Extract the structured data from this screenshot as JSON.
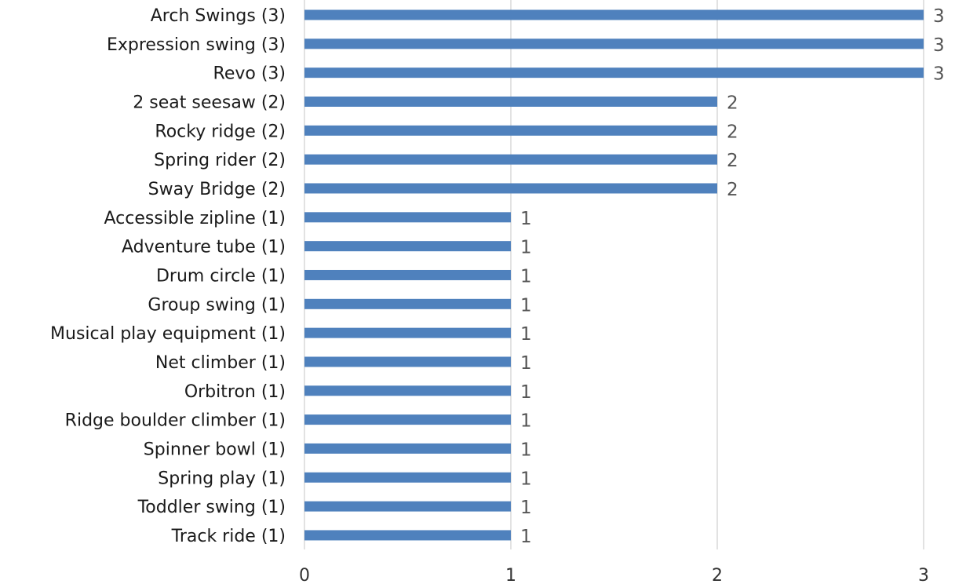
{
  "chart_data": {
    "type": "bar",
    "orientation": "horizontal",
    "categories": [
      "Arch Swings (3)",
      "Expression swing (3)",
      "Revo (3)",
      "2 seat seesaw (2)",
      "Rocky ridge (2)",
      "Spring rider (2)",
      "Sway Bridge (2)",
      "Accessible zipline (1)",
      "Adventure tube (1)",
      "Drum circle (1)",
      "Group swing (1)",
      "Musical play equipment (1)",
      "Net climber (1)",
      "Orbitron (1)",
      "Ridge boulder climber (1)",
      "Spinner bowl (1)",
      "Spring play (1)",
      "Toddler swing (1)",
      "Track ride (1)"
    ],
    "values": [
      3,
      3,
      3,
      2,
      2,
      2,
      2,
      1,
      1,
      1,
      1,
      1,
      1,
      1,
      1,
      1,
      1,
      1,
      1
    ],
    "x_ticks": [
      "0",
      "1",
      "2",
      "3"
    ],
    "xlim": [
      0,
      3
    ],
    "grid": "vertical",
    "legend": "none",
    "colors": {
      "bar": "#4f81bd",
      "gridline": "#d9d9d9",
      "data_label": "#555555",
      "category_label": "#1a1a1a"
    },
    "title": "",
    "xlabel": "",
    "ylabel": ""
  }
}
